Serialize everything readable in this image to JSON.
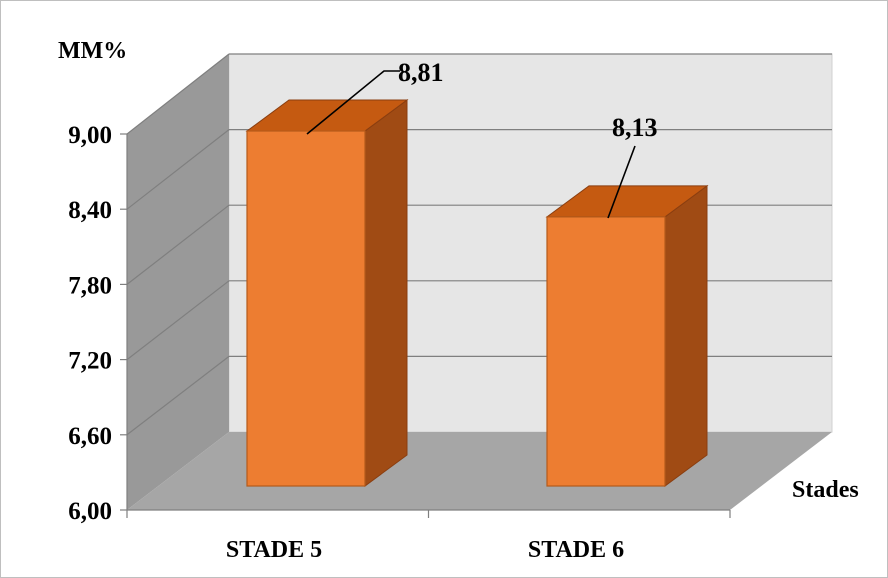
{
  "chart_data": {
    "type": "bar",
    "categories": [
      "STADE 5",
      "STADE 6"
    ],
    "values": [
      8.81,
      8.13
    ],
    "data_labels": [
      "8,81",
      "8,13"
    ],
    "ylabel": "MM%",
    "xlabel": "Stades",
    "ylim": [
      6.0,
      9.0
    ],
    "yticks": [
      6.0,
      6.6,
      7.2,
      7.8,
      8.4,
      9.0
    ],
    "ytick_labels": [
      "6,00",
      "6,60",
      "7,20",
      "7,80",
      "8,40",
      "9,00"
    ],
    "grid": true,
    "legend": "none",
    "style": "3d"
  },
  "colors": {
    "bar_front": "#ed7d31",
    "bar_top": "#c55a11",
    "bar_side": "#a04b14",
    "back_wall": "#e6e6e6",
    "side_wall": "#999999",
    "floor": "#a6a6a6",
    "gridline": "#7f7f7f"
  }
}
